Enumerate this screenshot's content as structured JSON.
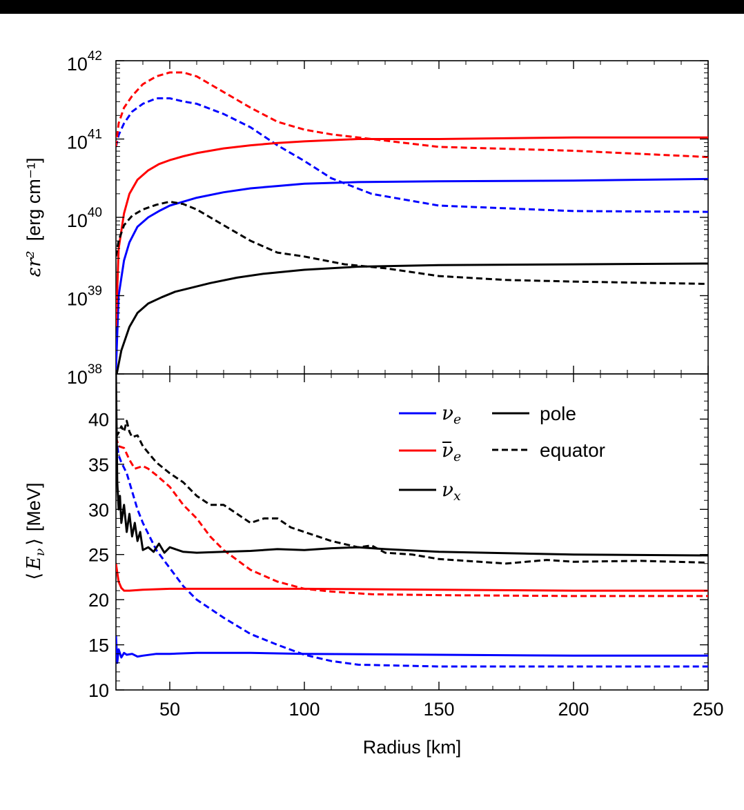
{
  "colors": {
    "nu_e": "#0000ff",
    "nubar_e": "#ff0000",
    "nu_x": "#000000",
    "background": "#ffffff",
    "frame": "#000000"
  },
  "chart_data": [
    {
      "panel": "top",
      "type": "line",
      "title": "",
      "xlabel": "",
      "ylabel": {
        "symbol": "εr²",
        "unit": "[erg cm⁻¹]"
      },
      "yscale": "log",
      "xlim": [
        30,
        250
      ],
      "ylim": [
        1e+38,
        1e+42
      ],
      "ytick_labels": [
        {
          "base": "10",
          "exp": "38",
          "value": 38
        },
        {
          "base": "10",
          "exp": "39",
          "value": 39
        },
        {
          "base": "10",
          "exp": "40",
          "value": 40
        },
        {
          "base": "10",
          "exp": "41",
          "value": 41
        },
        {
          "base": "10",
          "exp": "42",
          "value": 42
        }
      ],
      "note_log_values": "y values are given as log10 of εr² in erg cm⁻¹",
      "series": [
        {
          "species": "nu_e",
          "direction": "pole",
          "style": "solid",
          "x": [
            30,
            31,
            33,
            35,
            38,
            42,
            46,
            50,
            55,
            60,
            70,
            80,
            90,
            100,
            120,
            150,
            200,
            250
          ],
          "y": [
            38.05,
            39.0,
            39.45,
            39.68,
            39.88,
            40.0,
            40.08,
            40.15,
            40.2,
            40.25,
            40.32,
            40.37,
            40.4,
            40.43,
            40.45,
            40.46,
            40.47,
            40.49
          ]
        },
        {
          "species": "nu_e",
          "direction": "equator",
          "style": "dashed",
          "x": [
            30,
            31,
            33,
            36,
            40,
            45,
            50,
            55,
            60,
            70,
            80,
            90,
            100,
            110,
            125,
            150,
            200,
            250
          ],
          "y": [
            40.9,
            41.05,
            41.2,
            41.35,
            41.45,
            41.52,
            41.52,
            41.48,
            41.45,
            41.32,
            41.15,
            40.92,
            40.72,
            40.5,
            40.3,
            40.15,
            40.08,
            40.07
          ]
        },
        {
          "species": "nubar_e",
          "direction": "pole",
          "style": "solid",
          "x": [
            30,
            31,
            33,
            35,
            38,
            42,
            46,
            50,
            55,
            60,
            70,
            80,
            90,
            100,
            120,
            150,
            200,
            250
          ],
          "y": [
            38.6,
            39.6,
            40.05,
            40.3,
            40.48,
            40.6,
            40.68,
            40.73,
            40.78,
            40.82,
            40.88,
            40.92,
            40.95,
            40.97,
            41.0,
            41.0,
            41.02,
            41.02
          ]
        },
        {
          "species": "nubar_e",
          "direction": "equator",
          "style": "dashed",
          "x": [
            30,
            31,
            33,
            36,
            40,
            45,
            50,
            55,
            60,
            70,
            80,
            90,
            100,
            110,
            125,
            150,
            200,
            250
          ],
          "y": [
            40.9,
            41.2,
            41.4,
            41.55,
            41.7,
            41.8,
            41.85,
            41.85,
            41.8,
            41.6,
            41.4,
            41.22,
            41.12,
            41.06,
            41.0,
            40.9,
            40.85,
            40.77
          ]
        },
        {
          "species": "nu_x",
          "direction": "pole",
          "style": "solid",
          "x": [
            30,
            32,
            35,
            38,
            42,
            47,
            52,
            58,
            65,
            75,
            85,
            100,
            120,
            150,
            200,
            250
          ],
          "y": [
            37.95,
            38.3,
            38.6,
            38.78,
            38.9,
            38.98,
            39.05,
            39.1,
            39.16,
            39.23,
            39.28,
            39.33,
            39.37,
            39.39,
            39.4,
            39.41
          ]
        },
        {
          "species": "nu_x",
          "direction": "equator",
          "style": "dashed",
          "x": [
            30,
            31,
            33,
            36,
            40,
            45,
            50,
            55,
            60,
            65,
            70,
            80,
            90,
            100,
            115,
            130,
            150,
            175,
            200,
            250
          ],
          "y": [
            39.5,
            39.7,
            39.9,
            40.02,
            40.1,
            40.16,
            40.2,
            40.17,
            40.1,
            40.0,
            39.9,
            39.7,
            39.55,
            39.5,
            39.4,
            39.35,
            39.25,
            39.2,
            39.18,
            39.15
          ]
        }
      ]
    },
    {
      "panel": "bottom",
      "type": "line",
      "title": "",
      "xlabel": "Radius [km]",
      "ylabel": {
        "left": "⟨",
        "symbol": "E",
        "sub": "ν",
        "right": "⟩",
        "unit": "[MeV]"
      },
      "xlim": [
        30,
        250
      ],
      "ylim": [
        10,
        45
      ],
      "xticks": [
        50,
        100,
        150,
        200,
        250
      ],
      "xtick_labels": [
        "50",
        "100",
        "150",
        "200",
        "250"
      ],
      "yticks": [
        10,
        15,
        20,
        25,
        30,
        35,
        40
      ],
      "ytick_labels": [
        "10",
        "15",
        "20",
        "25",
        "30",
        "35",
        "40"
      ],
      "legend": {
        "position": "upper-right",
        "species": [
          {
            "key": "nu_e",
            "symbol": "ν",
            "sub": "e",
            "bar": false
          },
          {
            "key": "nubar_e",
            "symbol": "ν",
            "sub": "e",
            "bar": true
          },
          {
            "key": "nu_x",
            "symbol": "ν",
            "sub": "x",
            "bar": false
          }
        ],
        "styles": [
          {
            "style": "solid",
            "label": "pole"
          },
          {
            "style": "dashed",
            "label": "equator"
          }
        ]
      },
      "series": [
        {
          "species": "nu_e",
          "direction": "pole",
          "style": "solid",
          "x": [
            30,
            30.5,
            31,
            32,
            33,
            34,
            36,
            38,
            40,
            45,
            50,
            60,
            80,
            100,
            150,
            200,
            250
          ],
          "y": [
            16,
            13.0,
            14.5,
            13.6,
            14.1,
            13.9,
            14.0,
            13.7,
            13.8,
            14.0,
            14.0,
            14.1,
            14.1,
            14.0,
            13.9,
            13.8,
            13.8
          ]
        },
        {
          "species": "nu_e",
          "direction": "equator",
          "style": "dashed",
          "x": [
            30,
            31,
            32,
            34,
            36,
            38,
            40,
            45,
            50,
            55,
            60,
            70,
            80,
            90,
            100,
            110,
            120,
            150,
            200,
            250
          ],
          "y": [
            38,
            36,
            35.2,
            34,
            32,
            30,
            28.5,
            25.5,
            23.5,
            21.5,
            20,
            18,
            16.2,
            15,
            13.9,
            13.2,
            12.8,
            12.6,
            12.6,
            12.6
          ]
        },
        {
          "species": "nubar_e",
          "direction": "pole",
          "style": "solid",
          "x": [
            30,
            30.5,
            31,
            32,
            33,
            35,
            40,
            50,
            60,
            80,
            100,
            150,
            200,
            250
          ],
          "y": [
            24.0,
            23.0,
            22.0,
            21.3,
            21.0,
            21.0,
            21.1,
            21.2,
            21.2,
            21.2,
            21.2,
            21.1,
            21.0,
            21.0
          ]
        },
        {
          "species": "nubar_e",
          "direction": "equator",
          "style": "dashed",
          "x": [
            30,
            31,
            33,
            35,
            37,
            40,
            42,
            45,
            50,
            55,
            60,
            65,
            70,
            80,
            90,
            100,
            110,
            125,
            150,
            200,
            250
          ],
          "y": [
            38,
            37,
            36.8,
            35.5,
            34.5,
            34.8,
            34.5,
            33.8,
            32.5,
            30.5,
            29.0,
            27.0,
            25.5,
            23.3,
            22.0,
            21.2,
            20.9,
            20.6,
            20.5,
            20.4,
            20.4
          ]
        },
        {
          "species": "nu_x",
          "direction": "pole",
          "style": "solid",
          "x": [
            30,
            30.5,
            31,
            31.5,
            32,
            33,
            34,
            35,
            36,
            37,
            38,
            39,
            40,
            42,
            44,
            46,
            48,
            50,
            55,
            60,
            70,
            80,
            90,
            100,
            110,
            120,
            130,
            150,
            200,
            250
          ],
          "y": [
            45,
            33,
            30,
            31.5,
            28.5,
            30.5,
            27.5,
            29.5,
            27,
            28.5,
            26.5,
            27.5,
            25.5,
            25.8,
            25.3,
            26.2,
            25.2,
            25.8,
            25.3,
            25.2,
            25.3,
            25.4,
            25.6,
            25.5,
            25.7,
            25.8,
            25.6,
            25.3,
            25.0,
            24.9
          ]
        },
        {
          "species": "nu_x",
          "direction": "equator",
          "style": "dashed",
          "x": [
            30,
            31,
            32,
            33,
            34,
            35,
            36,
            38,
            40,
            45,
            50,
            55,
            60,
            65,
            70,
            75,
            80,
            85,
            90,
            95,
            100,
            110,
            120,
            125,
            130,
            140,
            150,
            160,
            175,
            190,
            200,
            225,
            250
          ],
          "y": [
            38,
            38.5,
            39.2,
            38.6,
            39.8,
            38.6,
            38.0,
            38.2,
            37.0,
            35.2,
            34.0,
            33.0,
            31.5,
            30.5,
            30.5,
            29.5,
            28.5,
            29.0,
            29.0,
            28.0,
            27.5,
            26.5,
            25.8,
            26.0,
            25.2,
            25.0,
            24.5,
            24.3,
            24.0,
            24.4,
            24.2,
            24.3,
            24.1
          ]
        }
      ]
    }
  ]
}
